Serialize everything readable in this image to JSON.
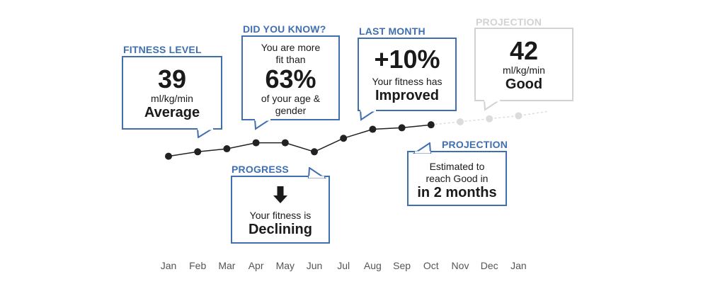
{
  "chart_data": {
    "type": "line",
    "categories": [
      "Jan",
      "Feb",
      "Mar",
      "Apr",
      "May",
      "Jun",
      "Jul",
      "Aug",
      "Sep",
      "Oct",
      "Nov",
      "Dec",
      "Jan"
    ],
    "values": [
      34.5,
      36,
      37,
      39,
      39,
      36,
      40.5,
      43.5,
      44,
      45,
      46,
      47,
      48
    ],
    "actual_count": 10,
    "colors": {
      "actual": "#222222",
      "projection": "#dcdcdc",
      "accent": "#3f6fb1"
    }
  },
  "callouts": {
    "fitness_level": {
      "label": "FITNESS LEVEL",
      "value": "39",
      "unit": "ml/kg/min",
      "status": "Average"
    },
    "did_you_know": {
      "label": "DID YOU KNOW?",
      "line1": "You are more",
      "line2": "fit than",
      "value": "63%",
      "line3": "of your age &",
      "line4": "gender"
    },
    "last_month": {
      "label": "LAST MONTH",
      "value": "+10%",
      "line1": "Your fitness has",
      "status": "Improved"
    },
    "projection_top": {
      "label": "PROJECTION",
      "value": "42",
      "unit": "ml/kg/min",
      "status": "Good"
    },
    "progress": {
      "label": "PROGRESS",
      "icon": "arrow-down-icon",
      "line1": "Your fitness is",
      "status": "Declining"
    },
    "projection_bottom": {
      "label": "PROJECTION",
      "line1": "Estimated to",
      "line2": "reach Good in",
      "status": "in 2 months"
    }
  }
}
